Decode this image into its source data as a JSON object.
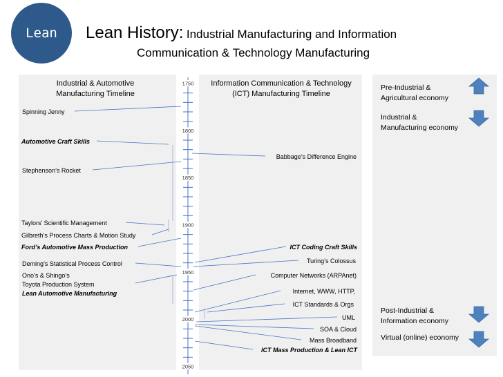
{
  "logo": {
    "text": "Lean"
  },
  "title": {
    "main": "Lean History:",
    "sub1": "Industrial Manufacturing and Information",
    "sub2": "Communication & Technology Manufacturing"
  },
  "left_panel": {
    "header_line1": "Industrial & Automotive",
    "header_line2": "Manufacturing Timeline",
    "events": [
      {
        "label": "Spinning Jenny",
        "year": 1764
      },
      {
        "label": "Automotive Craft Skills",
        "year": null
      },
      {
        "label": "Stephenson’s Rocket",
        "year": 1829
      },
      {
        "label": "Taylors’  Scientific Management",
        "year": null
      },
      {
        "label": "Gilbreth’s Process Charts & Motion Study",
        "year": null
      },
      {
        "label": "Ford’s  Automotive Mass Production",
        "year": 1913
      },
      {
        "label": "Deming’s Statistical Process Control",
        "year": 1950
      },
      {
        "label": "Ono’s & Shingo’s",
        "year": null
      },
      {
        "label": "Toyota Production System",
        "year": null
      },
      {
        "label": "Lean Automotive Manufacturing",
        "year": null
      }
    ]
  },
  "timeline": {
    "year_start": 1750,
    "year_end": 2050,
    "tick_labels": [
      "1750",
      "1800",
      "1850",
      "1900",
      "1950",
      "2000",
      "2050"
    ]
  },
  "right_panel": {
    "header_line1": "Information Communication & Technology",
    "header_line2": "(ICT) Manufacturing Timeline",
    "events": [
      {
        "label": "Babbage’s Difference Engine",
        "year": 1822
      },
      {
        "label": "ICT Coding Craft Skills",
        "year": null
      },
      {
        "label": "Turing’s Colossus",
        "year": 1943
      },
      {
        "label": "Computer Networks (ARPAnet)",
        "year": 1969
      },
      {
        "label": "Internet, WWW, HTTP,",
        "year": 1990
      },
      {
        "label": "ICT Standards & Orgs",
        "year": null
      },
      {
        "label": "UML",
        "year": 1997
      },
      {
        "label": "SOA & Cloud",
        "year": 2006
      },
      {
        "label": "Mass Broadband",
        "year": 2008
      },
      {
        "label": "ICT Mass Production & Lean ICT",
        "year": 2022
      }
    ]
  },
  "legend": [
    {
      "line1": "Pre-Industrial &",
      "line2": "Agricultural economy",
      "arrow": "up-arrow-icon"
    },
    {
      "line1": "Industrial &",
      "line2": "Manufacturing economy",
      "arrow": "down-arrow-icon"
    },
    {
      "line1": "Post-Industrial &",
      "line2": "Information economy",
      "arrow": "down-arrow-icon"
    },
    {
      "line1": "Virtual (online) economy",
      "line2": "",
      "arrow": "down-arrow-icon"
    }
  ],
  "colors": {
    "logo": "#2d5a8a",
    "arrow": "#4f81bd",
    "line": "#4472c4",
    "panel": "#f0f0f0"
  }
}
